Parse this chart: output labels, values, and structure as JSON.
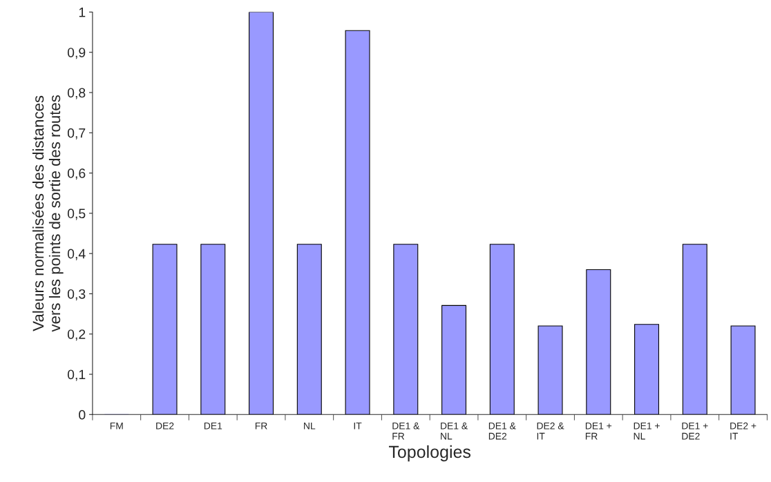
{
  "chart_data": {
    "type": "bar",
    "xlabel": "Topologies",
    "ylabel": "Valeurs normalisées des distances\nvers les points de sortie des routes",
    "categories": [
      "FM",
      "DE2",
      "DE1",
      "FR",
      "NL",
      "IT",
      "DE1 &\nFR",
      "DE1 &\nNL",
      "DE1 &\nDE2",
      "DE2 &\nIT",
      "DE1 +\nFR",
      "DE1 +\nNL",
      "DE1 +\nDE2",
      "DE2 +\nIT"
    ],
    "values": [
      0,
      0.423,
      0.423,
      1.0,
      0.423,
      0.954,
      0.423,
      0.271,
      0.423,
      0.22,
      0.36,
      0.224,
      0.423,
      0.22
    ],
    "color": "#9999ff",
    "ylim": [
      0,
      1
    ],
    "yticks": [
      0,
      {
        "value": 0.1,
        "label": "0,1"
      },
      {
        "value": 0.2,
        "label": "0,2"
      },
      {
        "value": 0.3,
        "label": "0,3"
      },
      {
        "value": 0.4,
        "label": "0,4"
      },
      {
        "value": 0.5,
        "label": "0,5"
      },
      {
        "value": 0.6,
        "label": "0,6"
      },
      {
        "value": 0.7,
        "label": "0,7"
      },
      {
        "value": 0.8,
        "label": "0,8"
      },
      {
        "value": 0.9,
        "label": "0,9"
      },
      1
    ],
    "grid": false,
    "legend": false
  }
}
